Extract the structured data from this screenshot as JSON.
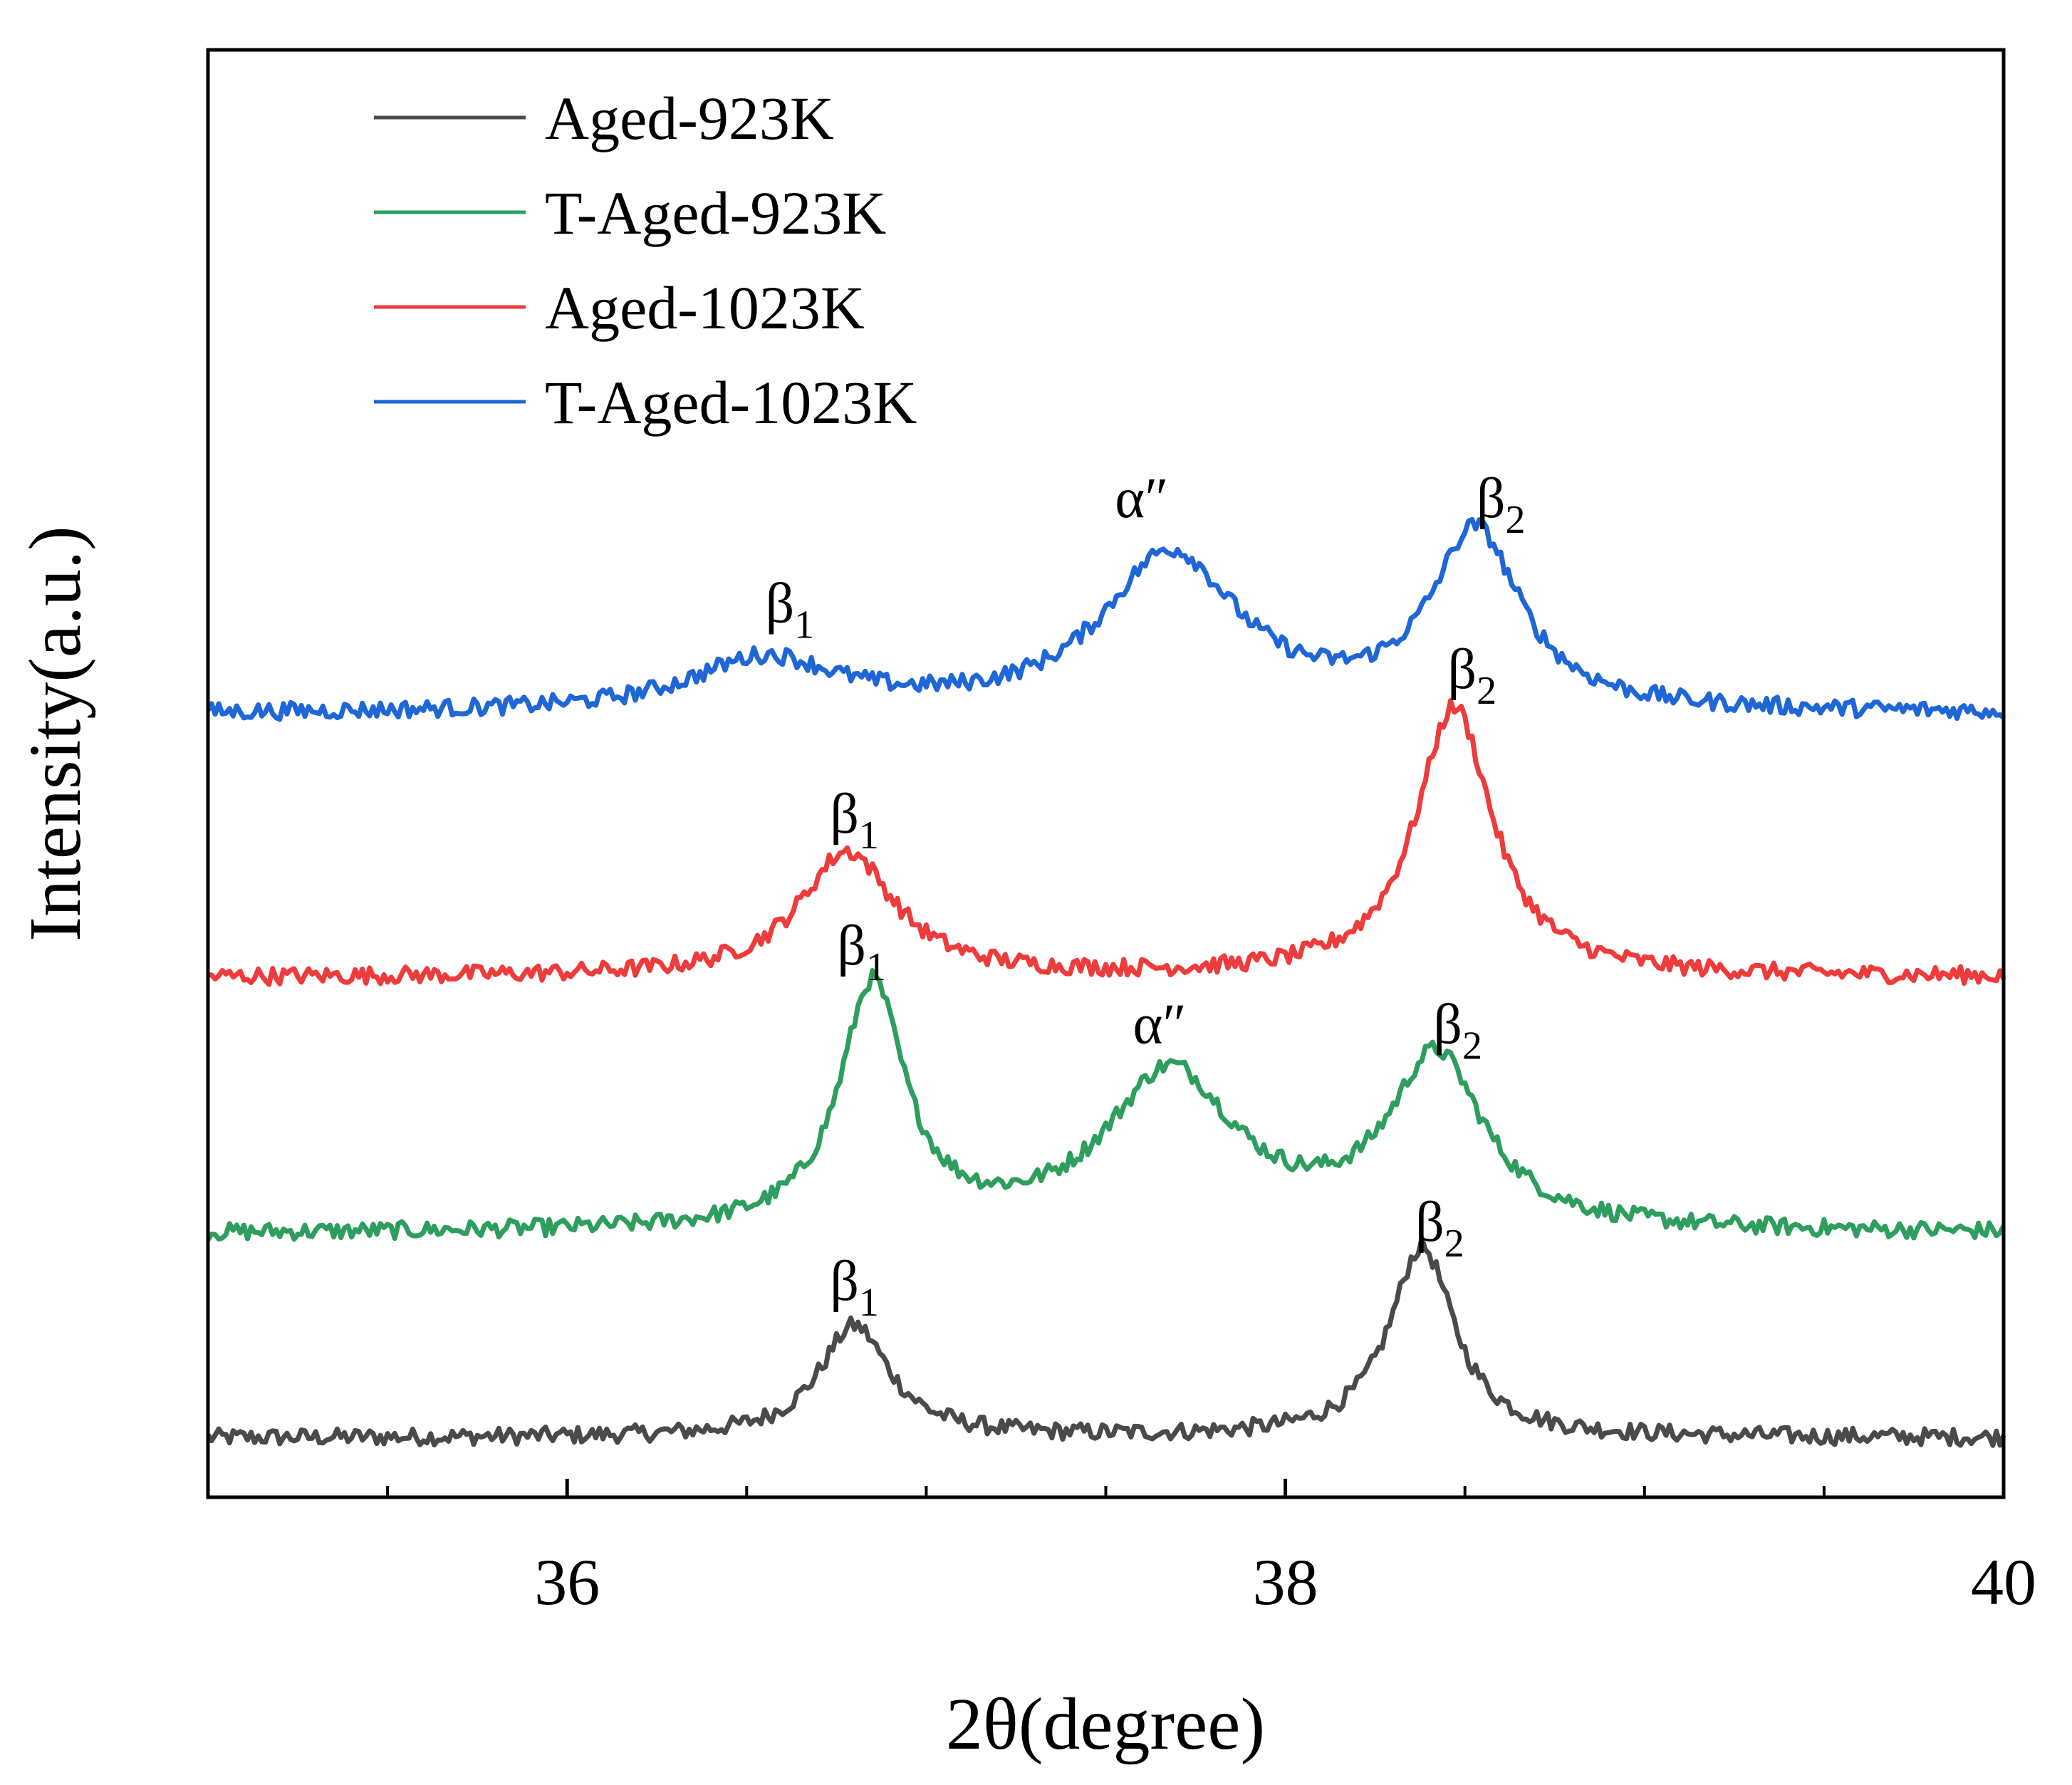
{
  "chart_data": {
    "type": "line",
    "title": "",
    "xlabel": "2θ(degree)",
    "ylabel": "Intensity(a.u.)",
    "xlim": [
      35,
      40
    ],
    "ylim": [
      0,
      110
    ],
    "x_ticks": [
      36,
      38,
      40
    ],
    "x_tick_labels": [
      "36",
      "38",
      "40"
    ],
    "y_ticks_shown": false,
    "grid": false,
    "legend_position": "top-left",
    "series": [
      {
        "name": "Aged-923K",
        "color": "#4a4a4a",
        "baseline": 4.5,
        "peaks": [
          {
            "label": "β1",
            "position": 36.8,
            "height": 8.5,
            "width": 0.12
          },
          {
            "label": "β2",
            "position": 38.38,
            "height": 14.5,
            "width": 0.11
          }
        ]
      },
      {
        "name": "T-Aged-923K",
        "color": "#2e9e5e",
        "baseline": 20.0,
        "peaks": [
          {
            "label": "β1",
            "position": 36.85,
            "height": 18.5,
            "width": 0.11
          },
          {
            "label": "α″",
            "position": 37.68,
            "height": 12.0,
            "width": 0.22
          },
          {
            "label": "β2",
            "position": 38.42,
            "height": 13.0,
            "width": 0.16
          }
        ]
      },
      {
        "name": "Aged-1023K",
        "color": "#ee3b3b",
        "baseline": 39.5,
        "peaks": [
          {
            "label": "β1",
            "position": 36.78,
            "height": 9.5,
            "width": 0.16
          },
          {
            "label": "β2",
            "position": 38.47,
            "height": 20.5,
            "width": 0.13
          }
        ]
      },
      {
        "name": "T-Aged-1023K",
        "color": "#1f66d6",
        "baseline": 59.5,
        "peaks": [
          {
            "label": "β1",
            "position": 36.55,
            "height": 4.0,
            "width": 0.25
          },
          {
            "label": "α″",
            "position": 37.68,
            "height": 12.0,
            "width": 0.23
          },
          {
            "label": "β2",
            "position": 38.53,
            "height": 13.5,
            "width": 0.15
          }
        ]
      }
    ],
    "annotations": [
      {
        "text": "β",
        "sub": "1",
        "x": 36.62,
        "y": 66.5
      },
      {
        "text": "α″",
        "sub": "",
        "x": 37.6,
        "y": 74.5
      },
      {
        "text": "β",
        "sub": "2",
        "x": 38.6,
        "y": 74.5
      },
      {
        "text": "β",
        "sub": "2",
        "x": 38.52,
        "y": 61.5
      },
      {
        "text": "β",
        "sub": "1",
        "x": 36.8,
        "y": 50.5
      },
      {
        "text": "β",
        "sub": "1",
        "x": 36.82,
        "y": 40.5
      },
      {
        "text": "α″",
        "sub": "",
        "x": 37.65,
        "y": 34.5
      },
      {
        "text": "β",
        "sub": "2",
        "x": 38.48,
        "y": 34.5
      },
      {
        "text": "β",
        "sub": "1",
        "x": 36.8,
        "y": 15.0
      },
      {
        "text": "β",
        "sub": "2",
        "x": 38.43,
        "y": 19.5
      }
    ]
  }
}
